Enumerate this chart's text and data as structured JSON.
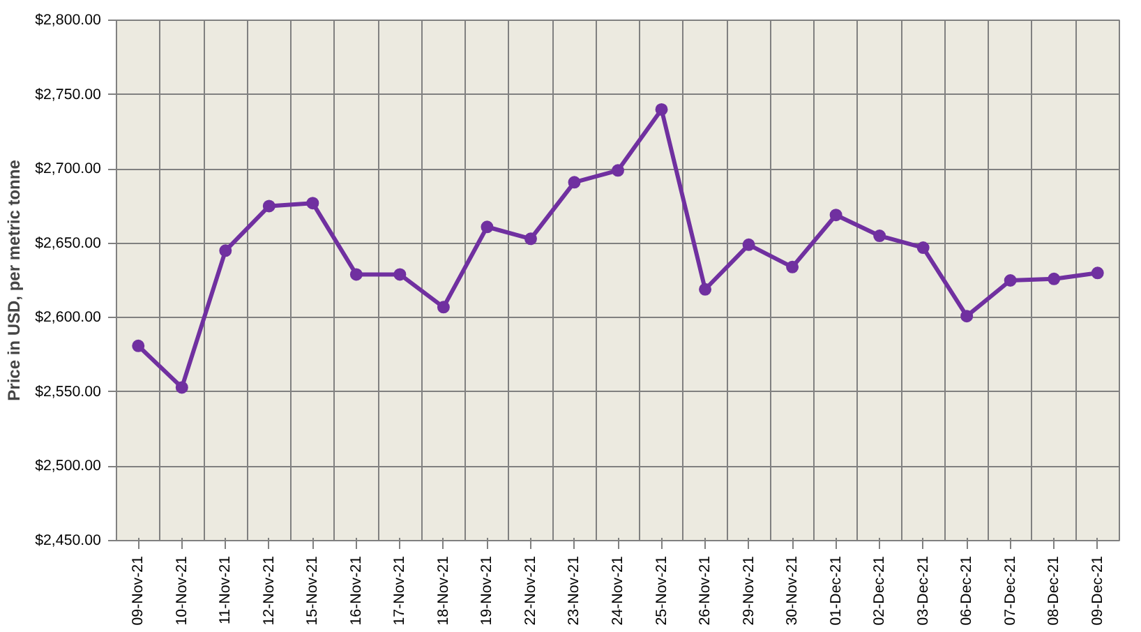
{
  "chart_data": {
    "type": "line",
    "ylabel": "Price in USD, per metric tonne",
    "categories": [
      "09-Nov-21",
      "10-Nov-21",
      "11-Nov-21",
      "12-Nov-21",
      "15-Nov-21",
      "16-Nov-21",
      "17-Nov-21",
      "18-Nov-21",
      "19-Nov-21",
      "22-Nov-21",
      "23-Nov-21",
      "24-Nov-21",
      "25-Nov-21",
      "26-Nov-21",
      "29-Nov-21",
      "30-Nov-21",
      "01-Dec-21",
      "02-Dec-21",
      "03-Dec-21",
      "06-Dec-21",
      "07-Dec-21",
      "08-Dec-21",
      "09-Dec-21"
    ],
    "series": [
      {
        "color": "#7030a0",
        "values": [
          2581,
          2553,
          2645,
          2675,
          2677,
          2629,
          2629,
          2607,
          2661,
          2653,
          2691,
          2699,
          2740,
          2619,
          2649,
          2634,
          2669,
          2655,
          2647,
          2601,
          2625,
          2626,
          2630
        ]
      }
    ],
    "ylim": [
      2450,
      2800
    ],
    "yticks": [
      {
        "value": 2450,
        "label": "$2,450.00"
      },
      {
        "value": 2500,
        "label": "$2,500.00"
      },
      {
        "value": 2550,
        "label": "$2,550.00"
      },
      {
        "value": 2600,
        "label": "$2,600.00"
      },
      {
        "value": 2650,
        "label": "$2,650.00"
      },
      {
        "value": 2700,
        "label": "$2,700.00"
      },
      {
        "value": 2750,
        "label": "$2,750.00"
      },
      {
        "value": 2800,
        "label": "$2,800.00"
      }
    ],
    "grid": true,
    "marker": "circle",
    "line_style": "solid"
  }
}
